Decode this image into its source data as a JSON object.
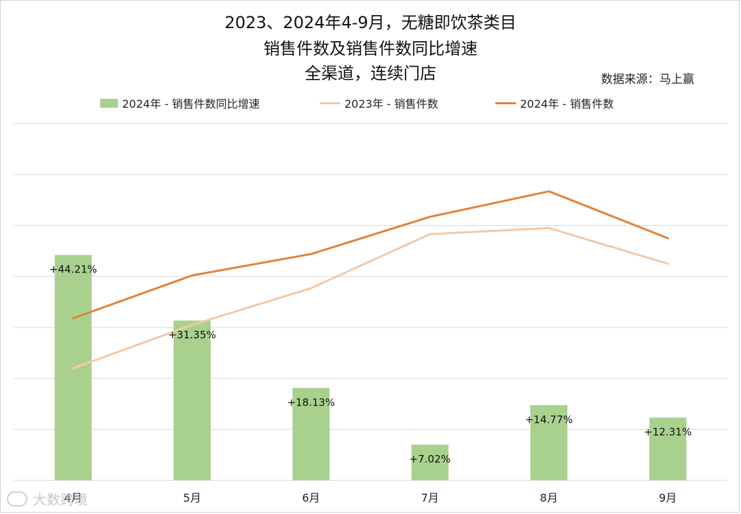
{
  "title_lines": [
    "2023、2024年4-9月，无糖即饮茶类目",
    "销售件数及销售件数同比增速",
    "全渠道，连续门店"
  ],
  "source": "数据来源：马上赢",
  "watermark": "大数跨境",
  "colors": {
    "bar": "#a9d18e",
    "line2023": "#f4c9a6",
    "line2024": "#e2823a",
    "grid": "#d9d9d9"
  },
  "chart_data": {
    "type": "bar",
    "categories": [
      "4月",
      "5月",
      "6月",
      "7月",
      "8月",
      "9月"
    ],
    "series": [
      {
        "name": "2024年 - 销售件数同比增速",
        "type": "bar",
        "values": [
          44.21,
          31.35,
          18.13,
          7.02,
          14.77,
          12.31
        ],
        "labels": [
          "+44.21%",
          "+31.35%",
          "+18.13%",
          "+7.02%",
          "+14.77%",
          "+12.31%"
        ]
      },
      {
        "name": "2023年 -  销售件数",
        "type": "line",
        "values": [
          22.0,
          30.5,
          37.7,
          48.3,
          49.5,
          42.5
        ]
      },
      {
        "name": "2024年 -  销售件数",
        "type": "line",
        "values": [
          31.8,
          40.2,
          44.4,
          51.7,
          56.7,
          47.5
        ]
      }
    ],
    "ylim": [
      0,
      70
    ],
    "grid": true,
    "legend_position": "top"
  }
}
